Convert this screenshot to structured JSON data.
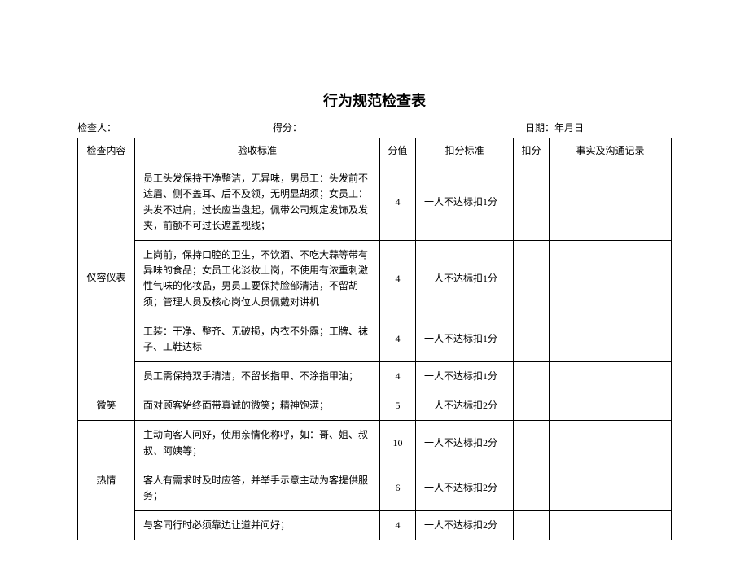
{
  "title": "行为规范检查表",
  "meta": {
    "inspector_label": "检查人：",
    "score_label": "得分：",
    "date_label": "日期：年月日"
  },
  "headers": {
    "category": "检查内容",
    "standard": "验收标准",
    "score": "分值",
    "deduct_std": "扣分标准",
    "deduct": "扣分",
    "notes": "事实及沟通记录"
  },
  "sections": [
    {
      "category": "仪容仪表",
      "rows": [
        {
          "standard": "员工头发保持干净整洁，无异味，男员工：头发前不遮眉、侧不盖耳、后不及领，无明显胡须；女员工：头发不过肩，过长应当盘起，佩带公司规定发饰及发夹，前额不可过长遮盖视线；",
          "score": "4",
          "deduct_std": "一人不达标扣1分"
        },
        {
          "standard": "上岗前，保持口腔的卫生，不饮酒、不吃大蒜等带有异味的食品；女员工化淡妆上岗，不使用有浓重刺激性气味的化妆品，男员工要保持脸部清洁，不留胡须；管理人员及核心岗位人员佩戴对讲机",
          "score": "4",
          "deduct_std": "一人不达标扣1分"
        },
        {
          "standard": "工装：干净、整齐、无破损，内衣不外露；工牌、袜子、工鞋达标",
          "score": "4",
          "deduct_std": "一人不达标扣1分"
        },
        {
          "standard": "员工需保持双手清洁，不留长指甲、不涂指甲油；",
          "score": "4",
          "deduct_std": "一人不达标扣1分"
        }
      ]
    },
    {
      "category": "微笑",
      "rows": [
        {
          "standard": "面对顾客始终面带真诚的微笑；精神饱满；",
          "score": "5",
          "deduct_std": "一人不达标扣2分"
        }
      ]
    },
    {
      "category": "热情",
      "rows": [
        {
          "standard": "主动向客人问好，使用亲情化称呼，如：哥、姐、叔叔、阿姨等；",
          "score": "10",
          "deduct_std": "一人不达标扣2分"
        },
        {
          "standard": "客人有需求时及时应答，并举手示意主动为客提供服务；",
          "score": "6",
          "deduct_std": "一人不达标扣2分"
        },
        {
          "standard": "与客同行时必须靠边让道并问好；",
          "score": "4",
          "deduct_std": "一人不达标扣2分"
        }
      ]
    }
  ]
}
